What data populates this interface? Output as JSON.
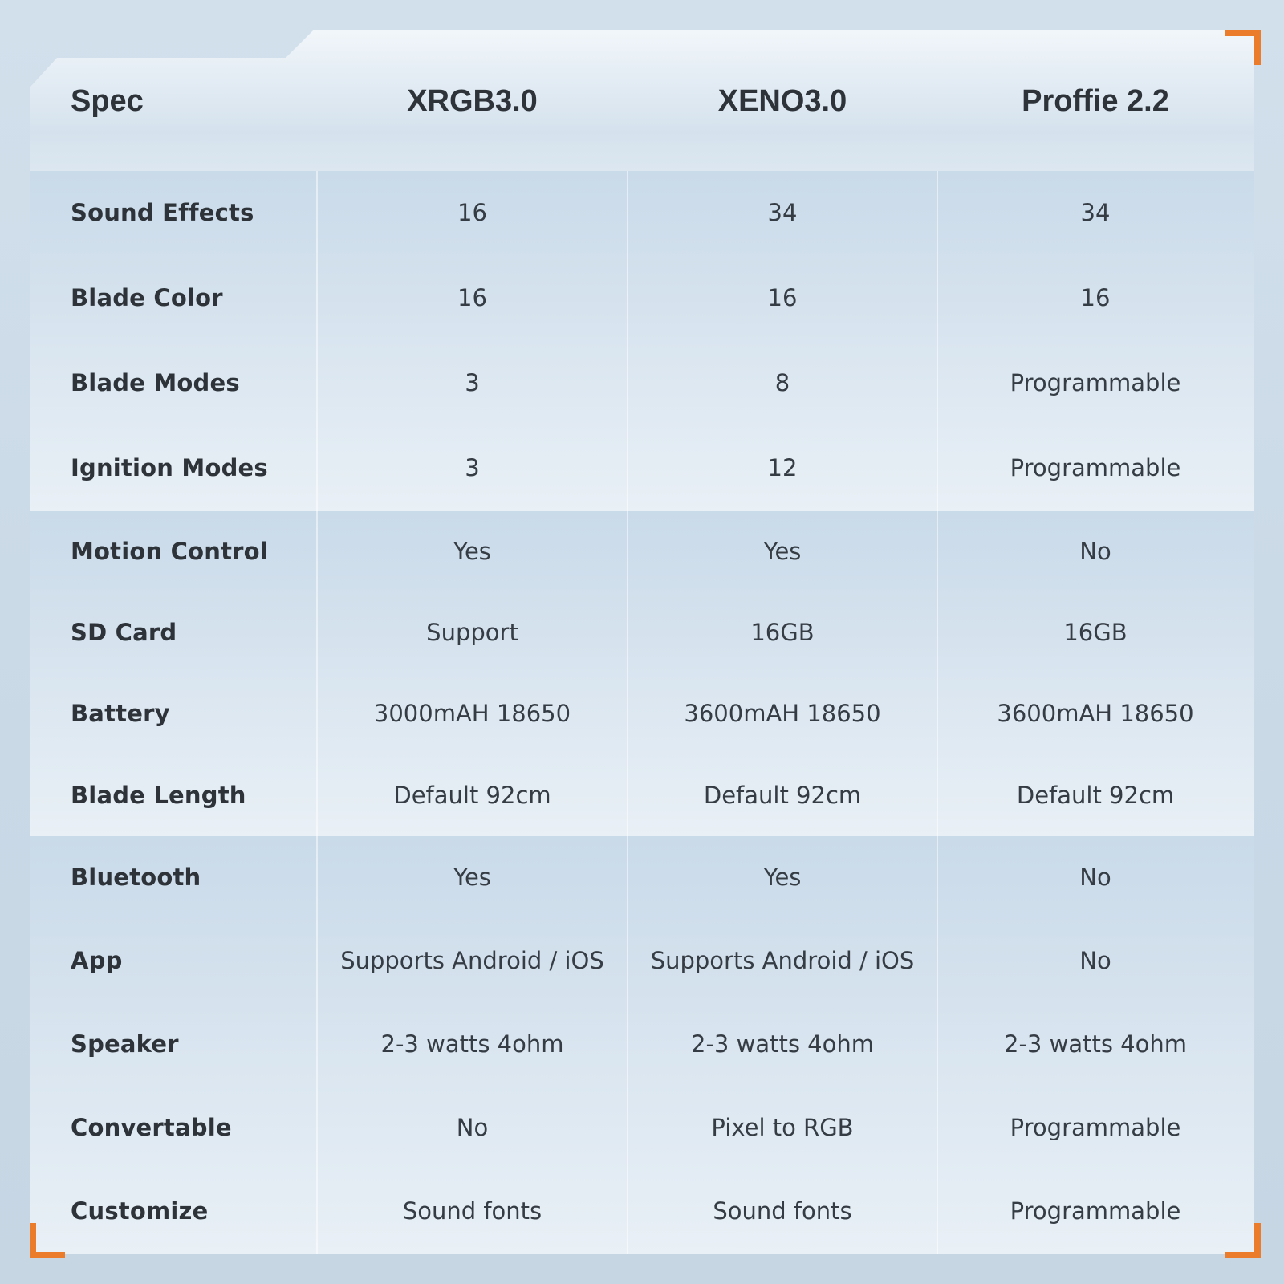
{
  "colors": {
    "accent": "#EA7C2C",
    "page_bg": "#CBDAE7",
    "header_text": "#2D3339",
    "label_text": "#2D3339",
    "value_text": "#353C44",
    "section_gradient_top": "#C9DAE9",
    "section_gradient_bottom": "#E9F0F6"
  },
  "table": {
    "header": {
      "spec": "Spec",
      "products": [
        "XRGB3.0",
        "XENO3.0",
        "Proffie 2.2"
      ]
    },
    "sections": [
      {
        "rows": [
          {
            "label": "Sound Effects",
            "values": [
              "16",
              "34",
              "34"
            ]
          },
          {
            "label": "Blade Color",
            "values": [
              "16",
              "16",
              "16"
            ]
          },
          {
            "label": "Blade Modes",
            "values": [
              "3",
              "8",
              "Programmable"
            ]
          },
          {
            "label": "Ignition Modes",
            "values": [
              "3",
              "12",
              "Programmable"
            ]
          }
        ]
      },
      {
        "rows": [
          {
            "label": "Motion Control",
            "values": [
              "Yes",
              "Yes",
              "No"
            ]
          },
          {
            "label": "SD Card",
            "values": [
              "Support",
              "16GB",
              "16GB"
            ]
          },
          {
            "label": "Battery",
            "values": [
              "3000mAH 18650",
              "3600mAH 18650",
              "3600mAH 18650"
            ]
          },
          {
            "label": "Blade Length",
            "values": [
              "Default 92cm",
              "Default 92cm",
              "Default 92cm"
            ]
          }
        ]
      },
      {
        "rows": [
          {
            "label": "Bluetooth",
            "values": [
              "Yes",
              "Yes",
              "No"
            ]
          },
          {
            "label": "App",
            "values": [
              "Supports Android / iOS",
              "Supports Android / iOS",
              "No"
            ]
          },
          {
            "label": "Speaker",
            "values": [
              "2-3 watts 4ohm",
              "2-3 watts 4ohm",
              "2-3 watts 4ohm"
            ]
          },
          {
            "label": "Convertable",
            "values": [
              "No",
              "Pixel to RGB",
              "Programmable"
            ]
          },
          {
            "label": "Customize",
            "values": [
              "Sound fonts",
              "Sound fonts",
              "Programmable"
            ]
          }
        ]
      }
    ]
  },
  "chart_data": {
    "type": "table",
    "columns": [
      "Spec",
      "XRGB3.0",
      "XENO3.0",
      "Proffie 2.2"
    ],
    "rows": [
      [
        "Sound Effects",
        "16",
        "34",
        "34"
      ],
      [
        "Blade Color",
        "16",
        "16",
        "16"
      ],
      [
        "Blade Modes",
        "3",
        "8",
        "Programmable"
      ],
      [
        "Ignition Modes",
        "3",
        "12",
        "Programmable"
      ],
      [
        "Motion Control",
        "Yes",
        "Yes",
        "No"
      ],
      [
        "SD Card",
        "Support",
        "16GB",
        "16GB"
      ],
      [
        "Battery",
        "3000mAH 18650",
        "3600mAH 18650",
        "3600mAH 18650"
      ],
      [
        "Blade Length",
        "Default 92cm",
        "Default 92cm",
        "Default 92cm"
      ],
      [
        "Bluetooth",
        "Yes",
        "Yes",
        "No"
      ],
      [
        "App",
        "Supports Android / iOS",
        "Supports Android / iOS",
        "No"
      ],
      [
        "Speaker",
        "2-3 watts 4ohm",
        "2-3 watts 4ohm",
        "2-3 watts 4ohm"
      ],
      [
        "Convertable",
        "No",
        "Pixel to RGB",
        "Programmable"
      ],
      [
        "Customize",
        "Sound fonts",
        "Sound fonts",
        "Programmable"
      ]
    ]
  }
}
